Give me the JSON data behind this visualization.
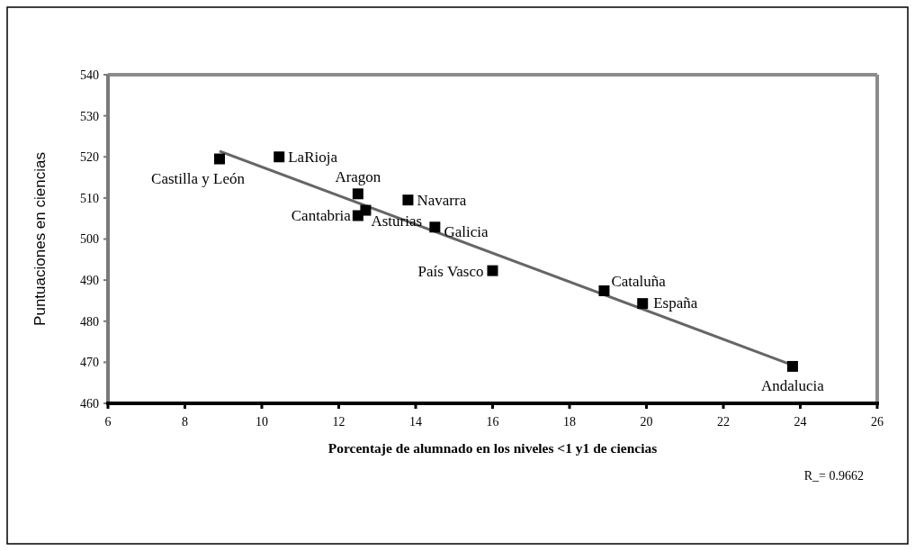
{
  "chart_data": {
    "type": "scatter",
    "xlabel": "Porcentaje de alumnado en los niveles <1 y1 de ciencias",
    "ylabel": "Puntuaciones en ciencias",
    "xlim": [
      6,
      26
    ],
    "xticks": [
      6,
      8,
      10,
      12,
      14,
      16,
      18,
      20,
      22,
      24,
      26
    ],
    "ylim": [
      460,
      540
    ],
    "yticks": [
      460,
      470,
      480,
      490,
      500,
      510,
      520,
      530,
      540
    ],
    "grid": false,
    "series": [
      {
        "marker": "square",
        "color": "#000000",
        "x": [
          8.9,
          10.45,
          12.5,
          12.5,
          12.7,
          13.8,
          14.5,
          16.0,
          18.9,
          19.9,
          23.8
        ],
        "values": [
          519.5,
          520,
          511,
          505.7,
          507,
          509.5,
          502.9,
          492.3,
          487.4,
          484.3,
          469
        ]
      },
      {
        "type": "line",
        "marker": "none",
        "color": "#666666",
        "x": [
          8.9,
          23.8
        ],
        "values": [
          521.4,
          469.3
        ]
      }
    ],
    "annotations": [
      {
        "text": "Castilla y León",
        "x": 8.9,
        "y": 519.5
      },
      {
        "text": "LaRioja",
        "x": 10.45,
        "y": 520
      },
      {
        "text": "Aragon",
        "x": 12.5,
        "y": 511
      },
      {
        "text": "Cantabria",
        "x": 12.5,
        "y": 505.7
      },
      {
        "text": "Asturias",
        "x": 12.7,
        "y": 507
      },
      {
        "text": "Navarra",
        "x": 13.8,
        "y": 509.5
      },
      {
        "text": "Galicia",
        "x": 14.5,
        "y": 502.9
      },
      {
        "text": "País Vasco",
        "x": 16.0,
        "y": 492.3
      },
      {
        "text": "Cataluña",
        "x": 18.9,
        "y": 487.4
      },
      {
        "text": "España",
        "x": 19.9,
        "y": 484.3
      },
      {
        "text": "Andalucia",
        "x": 23.8,
        "y": 469
      },
      "R_= 0.9662"
    ]
  }
}
